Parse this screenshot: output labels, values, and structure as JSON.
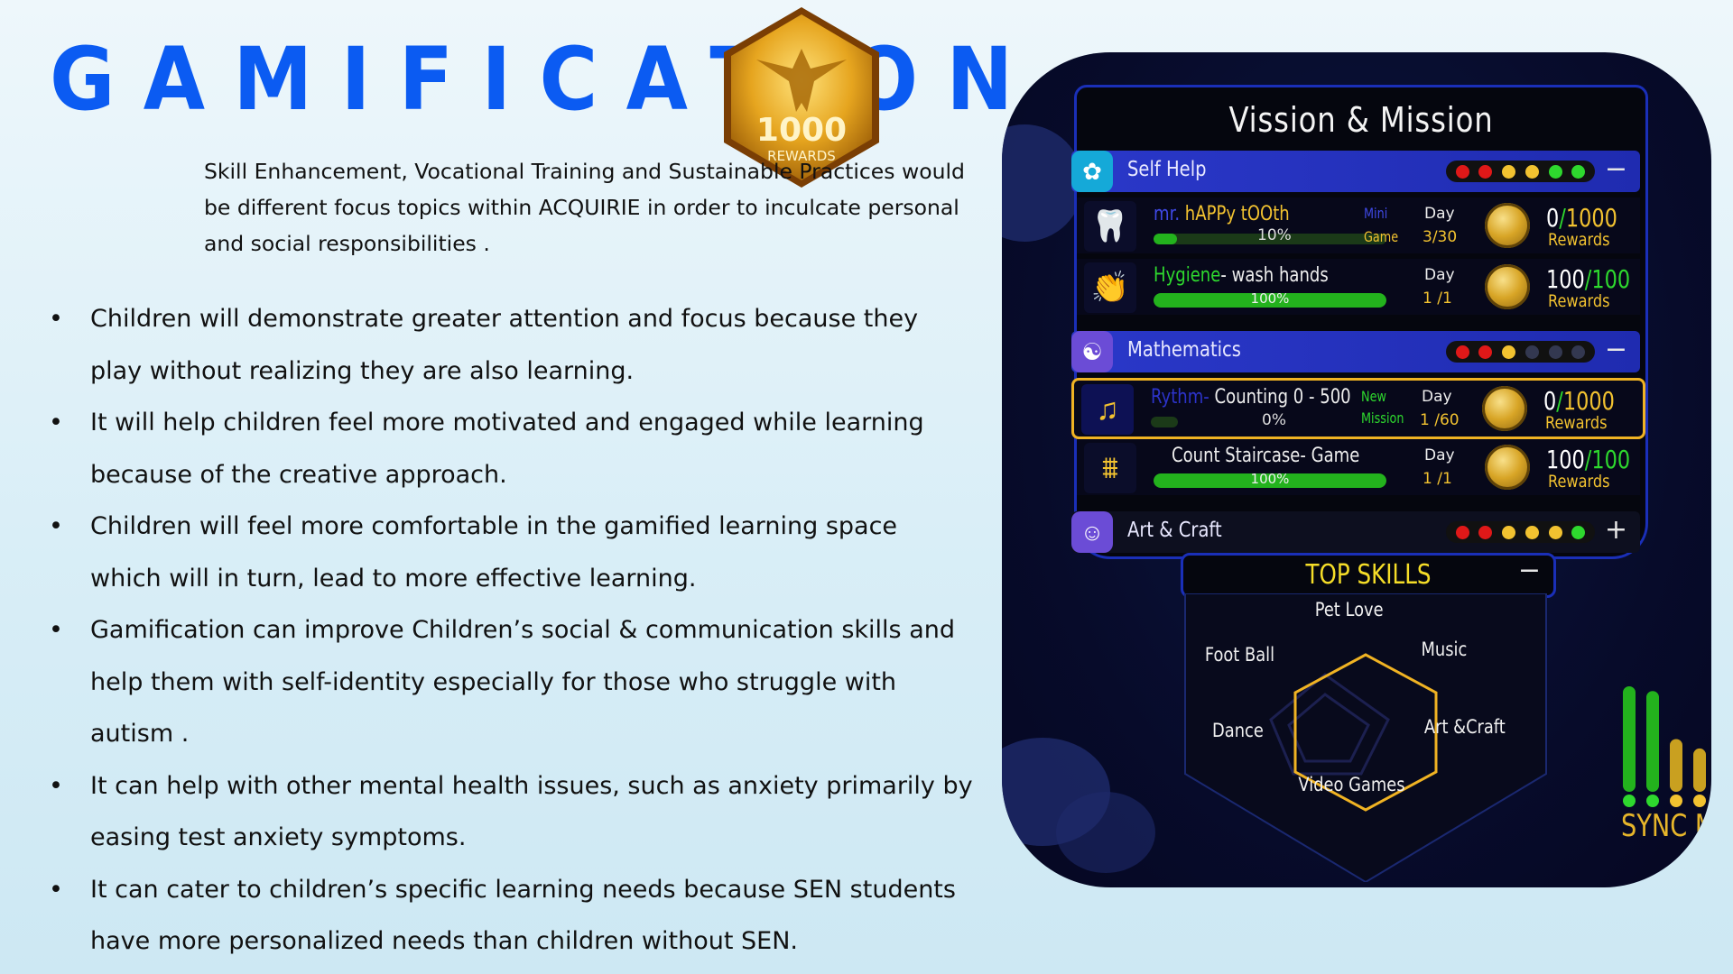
{
  "slide": {
    "title": "GAMIFICATION",
    "badge": {
      "number": "1000",
      "label": "REWARDS"
    },
    "intro": "Skill Enhancement, Vocational Training and Sustainable Practices would be different focus topics within ACQUIRIE in order to inculcate personal and social responsibilities .",
    "bullet_char": "•",
    "bullets": [
      "Children will demonstrate greater attention and focus because they play without realizing they are also learning.",
      "It will help children feel more motivated and engaged while learning because of the creative approach.",
      "Children will feel more comfortable in the gamified learning space which will in turn, lead to more effective learning.",
      "Gamification can improve Children’s social & communication skills and help them with self-identity especially for those who struggle with autism .",
      "It can help with other mental health issues, such as anxiety primarily by easing test anxiety symptoms.",
      "It can cater to children’s specific learning needs because SEN students have more personalized needs than children without SEN."
    ]
  },
  "app": {
    "panel_title": "Vission & Mission",
    "categories": [
      {
        "label": "Self Help",
        "toggle": "−",
        "leds": [
          "#e01818",
          "#e01818",
          "#f2c230",
          "#f2c230",
          "#2ed82e",
          "#2ed82e"
        ],
        "missions": [
          {
            "name_prefix": "mr. ",
            "name_main": "hAPPy t",
            "name_oo": "OO",
            "name_suffix": "th",
            "progress_text": "10%",
            "progress": 0.1,
            "tag1": "Mini",
            "tag2": "Game",
            "day_label": "Day",
            "day_value": "3/30",
            "reward_have": "0",
            "reward_sep": "/",
            "reward_total": "1000",
            "reward_label": "Rewards"
          },
          {
            "name_prefix": "Hygiene",
            "name_main": "- wash hands",
            "progress_text": "100%",
            "progress": 1.0,
            "day_label": "Day",
            "day_value": "1 /1",
            "reward_have": "100",
            "reward_sep": "/",
            "reward_total": "100",
            "reward_label": "Rewards"
          }
        ]
      },
      {
        "label": "Mathematics",
        "toggle": "−",
        "leds": [
          "#e01818",
          "#e01818",
          "#f2c230",
          "#333850",
          "#333850",
          "#333850"
        ],
        "missions": [
          {
            "name_prefix": "Rythm- ",
            "name_main": "Counting 0 - 500",
            "progress_text": "0%",
            "progress": 0.0,
            "tag1": "New",
            "tag2": "Mission",
            "day_label": "Day",
            "day_value": "1 /60",
            "reward_have": "0",
            "reward_sep": "/",
            "reward_total": "1000",
            "reward_label": "Rewards"
          },
          {
            "name_main": "Count Staircase- Game",
            "progress_text": "100%",
            "progress": 1.0,
            "day_label": "Day",
            "day_value": "1 /1",
            "reward_have": "100",
            "reward_sep": "/",
            "reward_total": "100",
            "reward_label": "Rewards"
          }
        ]
      },
      {
        "label": "Art & Craft",
        "toggle": "+",
        "leds": [
          "#e01818",
          "#e01818",
          "#f2c230",
          "#f2c230",
          "#f2c230",
          "#2ed82e"
        ]
      }
    ],
    "top_skills": {
      "title": "TOP SKILLS",
      "toggle": "−",
      "labels": [
        "Pet Love",
        "Music",
        "Art &Craft",
        "Video Games",
        "Dance",
        "Foot Ball"
      ]
    },
    "sync_label": "SYNC M",
    "sync_levels": [
      0.9,
      0.86,
      0.45,
      0.37
    ]
  }
}
